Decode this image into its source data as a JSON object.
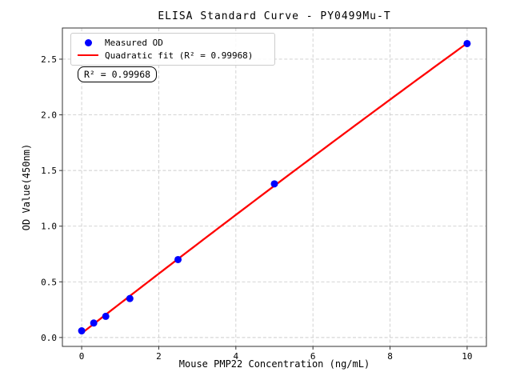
{
  "figure": {
    "title": "ELISA Standard Curve - PY0499Mu-T",
    "xlabel": "Mouse PMP22 Concentration (ng/mL)",
    "ylabel": "OD Value(450nm)",
    "annotation": "R² = 0.99968"
  },
  "legend": {
    "position": "upper-left",
    "items": [
      {
        "label": "Measured OD",
        "type": "marker",
        "color": "#0000ff"
      },
      {
        "label": "Quadratic fit (R² = 0.99968)",
        "type": "line",
        "color": "#ff0000"
      }
    ]
  },
  "chart_data": {
    "type": "scatter",
    "title": "ELISA Standard Curve - PY0499Mu-T",
    "xlabel": "Mouse PMP22 Concentration (ng/mL)",
    "ylabel": "OD Value(450nm)",
    "x": [
      0,
      0.3125,
      0.625,
      1.25,
      2.5,
      5,
      10
    ],
    "series": [
      {
        "name": "Measured OD",
        "type": "scatter",
        "marker": "circle",
        "color": "#0000ff",
        "values": [
          0.06,
          0.13,
          0.19,
          0.35,
          0.7,
          1.38,
          2.64
        ]
      },
      {
        "name": "Quadratic fit (R² = 0.99968)",
        "type": "quadratic_fit",
        "color": "#ff0000",
        "fit_domain": [
          0,
          10
        ],
        "r_squared": 0.99968
      }
    ],
    "xlim": [
      -0.5,
      10.5
    ],
    "ylim": [
      -0.08,
      2.78
    ],
    "xticks": [
      0,
      2,
      4,
      6,
      8,
      10
    ],
    "yticks": [
      0.0,
      0.5,
      1.0,
      1.5,
      2.0,
      2.5
    ],
    "grid": true,
    "grid_style": "dashed",
    "grid_color": "#cdcdcd",
    "background": "#ffffff",
    "legend_position": "upper-left",
    "r_squared": 0.99968
  }
}
